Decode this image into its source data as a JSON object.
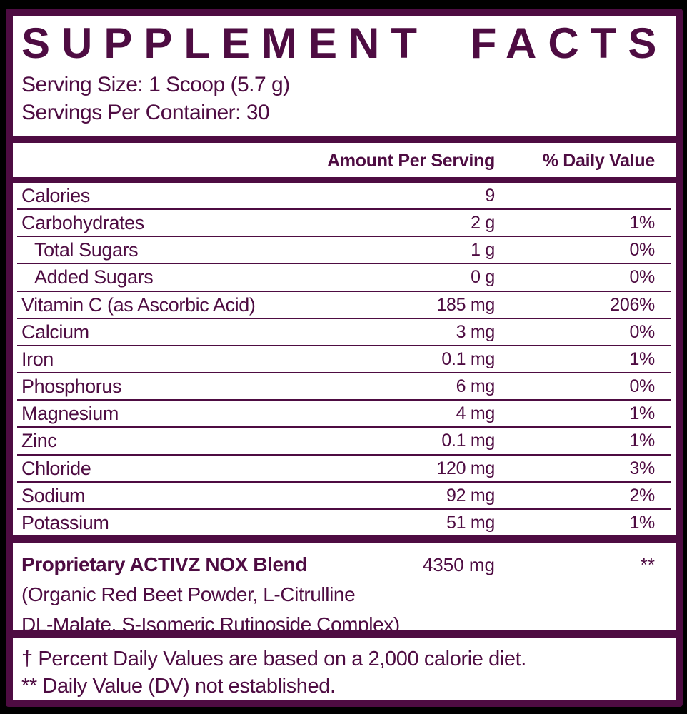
{
  "colors": {
    "purple": "#4e0c42",
    "paper": "#ffffff",
    "background": "#000000"
  },
  "header": {
    "title": "SUPPLEMENT FACTS",
    "serving_size": "Serving Size: 1 Scoop (5.7 g)",
    "servings_per_container": "Servings Per Container: 30"
  },
  "table": {
    "columns": [
      "Amount Per Serving",
      "% Daily Value"
    ],
    "rows": [
      {
        "label": "Calories",
        "amount": "9",
        "dv": "",
        "indent": false
      },
      {
        "label": "Carbohydrates",
        "amount": "2 g",
        "dv": "1%",
        "indent": false
      },
      {
        "label": "Total Sugars",
        "amount": "1 g",
        "dv": "0%",
        "indent": true
      },
      {
        "label": "Added Sugars",
        "amount": "0 g",
        "dv": "0%",
        "indent": true
      },
      {
        "label": "Vitamin C (as Ascorbic Acid)",
        "amount": "185 mg",
        "dv": "206%",
        "indent": false
      },
      {
        "label": "Calcium",
        "amount": "3 mg",
        "dv": "0%",
        "indent": false
      },
      {
        "label": "Iron",
        "amount": "0.1 mg",
        "dv": "1%",
        "indent": false
      },
      {
        "label": "Phosphorus",
        "amount": "6 mg",
        "dv": "0%",
        "indent": false
      },
      {
        "label": "Magnesium",
        "amount": "4 mg",
        "dv": "1%",
        "indent": false
      },
      {
        "label": "Zinc",
        "amount": "0.1 mg",
        "dv": "1%",
        "indent": false
      },
      {
        "label": "Chloride",
        "amount": "120 mg",
        "dv": "3%",
        "indent": false
      },
      {
        "label": "Sodium",
        "amount": "92 mg",
        "dv": "2%",
        "indent": false
      },
      {
        "label": "Potassium",
        "amount": "51 mg",
        "dv": "1%",
        "indent": false
      }
    ]
  },
  "blend": {
    "name": "Proprietary ACTIVZ NOX Blend",
    "amount": "4350 mg",
    "dv": "**",
    "ingredients_line1": "(Organic Red Beet Powder, L-Citrulline",
    "ingredients_line2": "DL-Malate, S-Isomeric Rutinoside Complex)"
  },
  "footnotes": [
    "† Percent Daily Values are based on a 2,000 calorie diet.",
    "** Daily Value (DV) not established."
  ]
}
